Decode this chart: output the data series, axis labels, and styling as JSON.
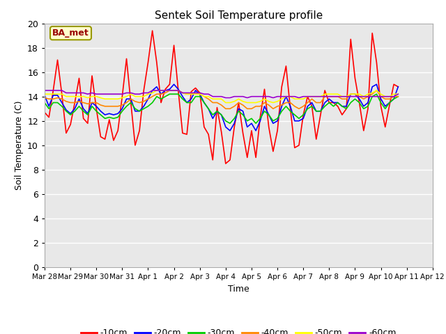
{
  "title": "Sentek Soil Temperature profile",
  "xlabel": "Time",
  "ylabel": "Soil Temperature (C)",
  "annotation_text": "BA_met",
  "annotation_bg": "#FFFFCC",
  "annotation_border": "#999900",
  "ylim": [
    0,
    20
  ],
  "yticks": [
    0,
    2,
    4,
    6,
    8,
    10,
    12,
    14,
    16,
    18,
    20
  ],
  "bg_color": "#E8E8E8",
  "fig_bg": "#FFFFFF",
  "grid_color": "#FFFFFF",
  "series": [
    {
      "label": "-10cm",
      "color": "#FF0000",
      "linewidth": 1.2,
      "values": [
        12.7,
        12.3,
        14.5,
        17.0,
        14.2,
        11.0,
        11.7,
        13.5,
        15.5,
        12.2,
        11.8,
        15.7,
        13.0,
        10.7,
        10.5,
        12.1,
        10.4,
        11.2,
        14.0,
        17.1,
        13.5,
        10.0,
        11.2,
        14.5,
        16.8,
        19.4,
        16.8,
        13.5,
        14.6,
        15.0,
        18.2,
        14.5,
        11.0,
        10.9,
        14.4,
        14.7,
        14.3,
        11.5,
        10.9,
        8.8,
        13.1,
        11.1,
        8.5,
        8.8,
        11.5,
        13.5,
        11.0,
        9.0,
        11.2,
        9.0,
        12.3,
        14.6,
        11.5,
        9.5,
        11.2,
        14.8,
        16.5,
        13.0,
        9.8,
        10.0,
        12.5,
        14.0,
        13.2,
        10.5,
        12.5,
        14.5,
        13.5,
        13.5,
        13.2,
        12.5,
        13.0,
        18.7,
        15.5,
        13.5,
        11.2,
        13.0,
        19.2,
        16.8,
        13.2,
        11.5,
        13.3,
        15.0,
        14.8
      ]
    },
    {
      "label": "-20cm",
      "color": "#0000FF",
      "linewidth": 1.2,
      "values": [
        14.1,
        13.2,
        14.1,
        14.1,
        13.5,
        12.9,
        12.6,
        13.0,
        13.8,
        13.0,
        12.6,
        13.5,
        13.2,
        12.8,
        12.5,
        12.6,
        12.5,
        12.6,
        13.0,
        13.8,
        13.8,
        12.8,
        12.8,
        13.2,
        13.8,
        14.5,
        14.8,
        14.2,
        14.5,
        14.6,
        15.0,
        14.6,
        14.0,
        13.5,
        13.8,
        14.5,
        14.2,
        13.5,
        13.0,
        12.2,
        12.8,
        12.5,
        11.5,
        11.2,
        11.8,
        13.0,
        12.8,
        11.5,
        11.8,
        11.2,
        12.0,
        13.2,
        12.5,
        11.8,
        12.0,
        13.2,
        14.0,
        13.2,
        12.0,
        12.0,
        12.2,
        13.2,
        13.5,
        12.8,
        12.8,
        13.5,
        13.8,
        13.5,
        13.5,
        13.2,
        13.2,
        14.2,
        14.2,
        13.8,
        13.2,
        13.5,
        14.8,
        15.0,
        13.8,
        13.2,
        13.5,
        13.8,
        14.8
      ]
    },
    {
      "label": "-30cm",
      "color": "#00CC00",
      "linewidth": 1.2,
      "values": [
        13.5,
        13.0,
        13.5,
        13.5,
        13.2,
        12.8,
        12.5,
        12.8,
        13.2,
        12.8,
        12.5,
        13.2,
        12.8,
        12.5,
        12.2,
        12.3,
        12.2,
        12.3,
        12.8,
        13.2,
        13.5,
        13.0,
        12.8,
        13.0,
        13.2,
        13.5,
        14.0,
        13.8,
        14.0,
        14.2,
        14.2,
        14.2,
        13.8,
        13.5,
        13.5,
        14.0,
        14.0,
        13.5,
        13.0,
        12.5,
        12.8,
        12.5,
        12.0,
        11.8,
        12.2,
        12.8,
        12.5,
        12.0,
        12.2,
        11.8,
        12.2,
        12.8,
        12.5,
        12.0,
        12.2,
        12.8,
        13.2,
        12.8,
        12.5,
        12.2,
        12.5,
        13.0,
        13.2,
        12.8,
        12.8,
        13.2,
        13.5,
        13.2,
        13.5,
        13.2,
        13.0,
        13.5,
        13.8,
        13.5,
        13.0,
        13.2,
        14.0,
        14.2,
        13.5,
        13.0,
        13.5,
        13.8,
        14.0
      ]
    },
    {
      "label": "-40cm",
      "color": "#FF8800",
      "linewidth": 1.2,
      "values": [
        13.9,
        13.8,
        13.8,
        13.9,
        13.8,
        13.6,
        13.5,
        13.5,
        13.6,
        13.5,
        13.4,
        13.5,
        13.5,
        13.3,
        13.2,
        13.2,
        13.2,
        13.2,
        13.3,
        13.5,
        13.8,
        13.6,
        13.5,
        13.6,
        13.8,
        14.0,
        14.2,
        14.2,
        14.3,
        14.5,
        14.5,
        14.5,
        14.3,
        14.2,
        14.2,
        14.3,
        14.2,
        14.0,
        13.8,
        13.5,
        13.5,
        13.3,
        13.0,
        13.0,
        13.2,
        13.5,
        13.3,
        13.0,
        13.0,
        13.2,
        13.2,
        13.5,
        13.3,
        13.0,
        13.2,
        13.3,
        13.5,
        13.5,
        13.2,
        13.0,
        13.2,
        13.5,
        13.8,
        13.5,
        13.5,
        14.0,
        14.0,
        14.0,
        14.0,
        13.8,
        13.8,
        14.2,
        14.2,
        14.0,
        13.8,
        14.0,
        14.2,
        14.5,
        14.0,
        13.8,
        13.8,
        14.0,
        14.0
      ]
    },
    {
      "label": "-50cm",
      "color": "#FFFF00",
      "linewidth": 1.2,
      "values": [
        14.2,
        14.2,
        14.2,
        14.2,
        14.2,
        14.0,
        14.0,
        14.0,
        14.0,
        14.0,
        13.9,
        14.0,
        14.0,
        13.9,
        13.8,
        13.8,
        13.8,
        13.8,
        13.9,
        14.0,
        14.2,
        14.0,
        14.0,
        14.0,
        14.2,
        14.3,
        14.5,
        14.5,
        14.5,
        14.5,
        14.5,
        14.5,
        14.3,
        14.2,
        14.2,
        14.2,
        14.2,
        14.0,
        14.0,
        13.8,
        13.8,
        13.8,
        13.5,
        13.5,
        13.6,
        13.8,
        13.6,
        13.5,
        13.5,
        13.5,
        13.6,
        13.8,
        13.6,
        13.5,
        13.6,
        13.8,
        14.0,
        14.0,
        13.8,
        13.8,
        13.8,
        14.0,
        14.0,
        14.0,
        14.0,
        14.2,
        14.2,
        14.2,
        14.2,
        14.0,
        14.0,
        14.2,
        14.2,
        14.2,
        14.0,
        14.2,
        14.3,
        14.5,
        14.2,
        14.0,
        14.0,
        14.2,
        14.2
      ]
    },
    {
      "label": "-60cm",
      "color": "#9900CC",
      "linewidth": 1.2,
      "values": [
        14.5,
        14.5,
        14.5,
        14.5,
        14.5,
        14.3,
        14.3,
        14.3,
        14.3,
        14.3,
        14.2,
        14.3,
        14.2,
        14.2,
        14.2,
        14.2,
        14.2,
        14.2,
        14.2,
        14.3,
        14.3,
        14.2,
        14.2,
        14.3,
        14.3,
        14.5,
        14.5,
        14.5,
        14.5,
        14.5,
        14.5,
        14.5,
        14.3,
        14.3,
        14.3,
        14.3,
        14.3,
        14.2,
        14.2,
        14.0,
        14.0,
        14.0,
        13.9,
        13.9,
        14.0,
        14.0,
        14.0,
        13.9,
        14.0,
        14.0,
        14.0,
        14.0,
        14.0,
        13.9,
        14.0,
        14.0,
        14.0,
        14.0,
        14.0,
        13.9,
        14.0,
        14.0,
        14.0,
        14.0,
        14.0,
        14.0,
        14.0,
        14.0,
        14.0,
        14.0,
        14.0,
        14.0,
        14.0,
        14.0,
        14.0,
        14.0,
        14.0,
        14.0,
        14.0,
        14.0,
        14.0,
        14.0,
        14.2
      ]
    }
  ],
  "n_points": 83,
  "xtick_labels": [
    "Mar 28",
    "Mar 29",
    "Mar 30",
    "Mar 31",
    "Apr 1",
    "Apr 2",
    "Apr 3",
    "Apr 4",
    "Apr 5",
    "Apr 6",
    "Apr 7",
    "Apr 8",
    "Apr 9",
    "Apr 10",
    "Apr 11",
    "Apr 12"
  ],
  "xtick_positions": [
    0,
    6,
    12,
    18,
    24,
    30,
    36,
    42,
    48,
    54,
    60,
    66,
    72,
    78,
    84,
    90
  ]
}
